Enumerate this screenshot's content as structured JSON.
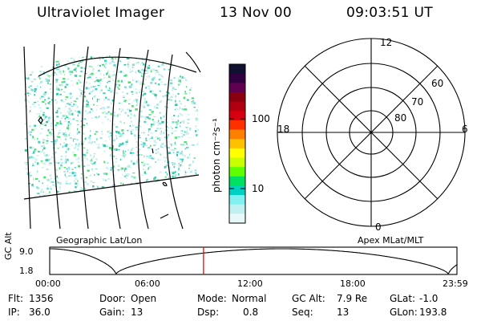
{
  "header": {
    "instrument": "Ultraviolet Imager",
    "date": "13 Nov 00",
    "time": "09:03:51 UT"
  },
  "colorbar": {
    "unit_label": "photon cm⁻²s⁻¹",
    "ticks": [
      "100",
      "10"
    ],
    "colors": [
      "#101030",
      "#300040",
      "#600050",
      "#8b0010",
      "#b00010",
      "#d80010",
      "#ff3000",
      "#ff8000",
      "#ffc000",
      "#ffff00",
      "#c8ff00",
      "#60ff00",
      "#00e060",
      "#00d0c0",
      "#80f0f0",
      "#c0f0f0",
      "#e8f8f8"
    ]
  },
  "polar_plot": {
    "mlt_labels": {
      "top": "12",
      "left": "18",
      "right": "6",
      "bottom": "0"
    },
    "lat_labels": [
      "60",
      "70",
      "80"
    ]
  },
  "labels": {
    "left_panel": "Geographic Lat/Lon",
    "right_panel": "Apex MLat/MLT"
  },
  "altitude_plot": {
    "axis_title": "GC Alt",
    "y_ticks": [
      "9.0",
      "1.8"
    ],
    "x_ticks": [
      "00:00",
      "06:00",
      "12:00",
      "18:00",
      "23:59"
    ],
    "current_time_hours": 9.064,
    "marker_color": "#ff0000"
  },
  "status": {
    "row1": [
      {
        "key": "Flt:",
        "value": "1356"
      },
      {
        "key": "Door:",
        "value": "Open"
      },
      {
        "key": "Mode:",
        "value": "Normal"
      },
      {
        "key": "GC Alt:",
        "value": "7.9 Re"
      },
      {
        "key": "GLat:",
        "value": "-1.0"
      }
    ],
    "row2": [
      {
        "key": "IP:",
        "value": "36.0"
      },
      {
        "key": "Gain:",
        "value": "13"
      },
      {
        "key": "Dsp:",
        "value": "0.8"
      },
      {
        "key": "Seq:",
        "value": "13"
      },
      {
        "key": "GLon:",
        "value": "193.8"
      }
    ]
  }
}
